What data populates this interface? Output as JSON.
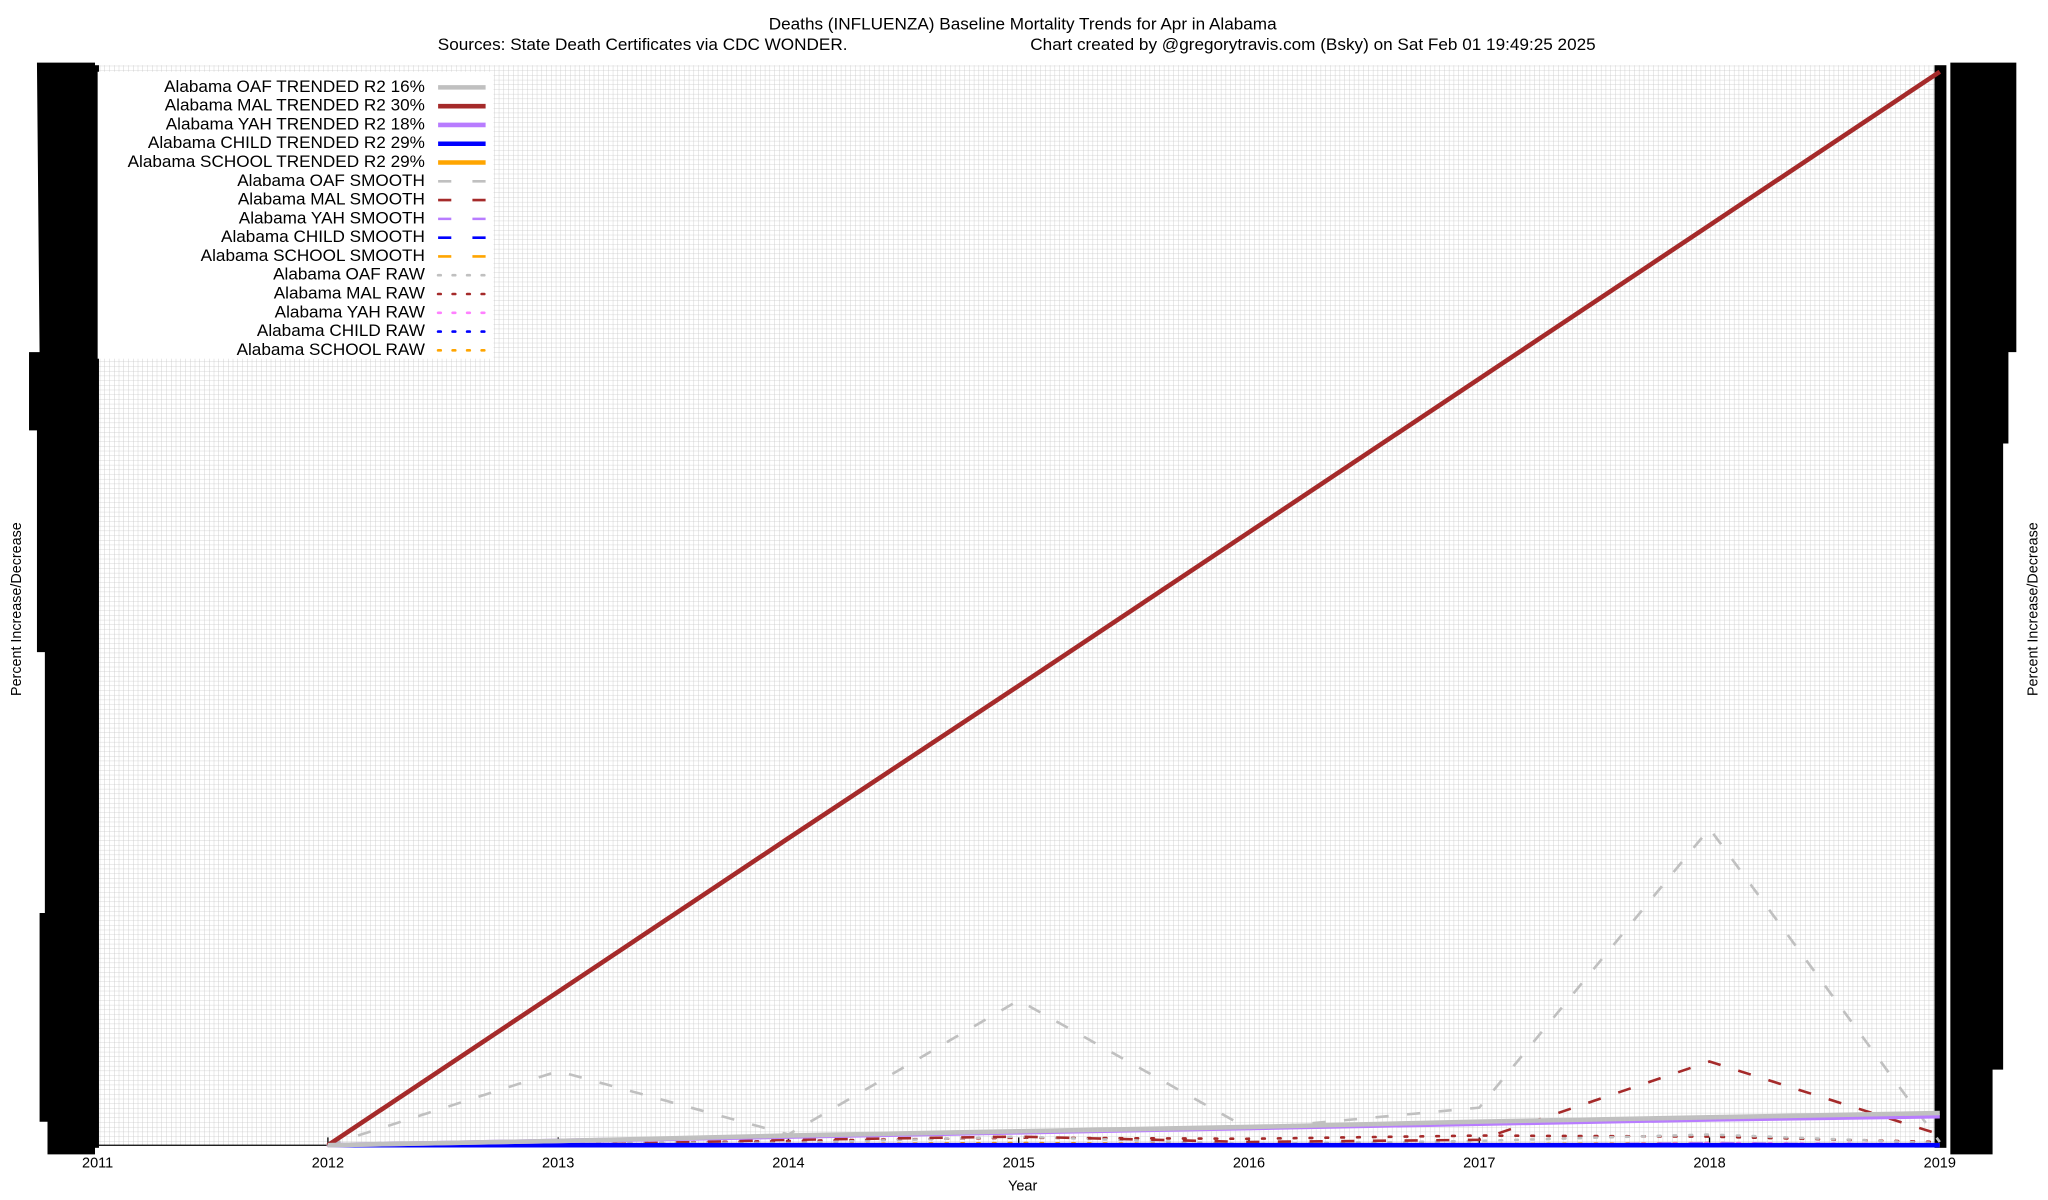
{
  "chart_data": {
    "type": "line",
    "title": "Deaths (INFLUENZA)  Baseline Mortality Trends for Apr in Alabama",
    "subtitle": "Sources: State Death Certificates via CDC WONDER.",
    "credit": "Chart created by @gregorytravis.com (Bsky) on Sat Feb 01 19:49:25 2025",
    "x_label": "Year",
    "y_label": "Percent Increase/Decrease",
    "y2_label": "Percent Increase/Decrease",
    "x": [
      2012,
      2013,
      2014,
      2015,
      2016,
      2017,
      2018,
      2019
    ],
    "xlim": [
      2011,
      2019
    ],
    "xticks": [
      2011,
      2012,
      2013,
      2014,
      2015,
      2016,
      2017,
      2018,
      2019
    ],
    "ylim": [
      0,
      100
    ],
    "grid": true,
    "legend": "top-left",
    "series": [
      {
        "name": "Alabama OAF TRENDED R2  16%",
        "color": "#c0c0c0",
        "style": "solid",
        "values": [
          0,
          0.4,
          0.9,
          1.3,
          1.7,
          2.2,
          2.6,
          3.0
        ]
      },
      {
        "name": "Alabama MAL TRENDED R2  30%",
        "color": "#a52a2a",
        "style": "solid",
        "values": [
          0,
          14.3,
          28.6,
          42.8,
          57.1,
          71.4,
          85.7,
          100
        ]
      },
      {
        "name": "Alabama YAH TRENDED R2  18%",
        "color": "#b87cff",
        "style": "solid",
        "values": [
          0,
          0.4,
          0.8,
          1.2,
          1.6,
          2.0,
          2.4,
          2.7
        ]
      },
      {
        "name": "Alabama CHILD TRENDED R2  29%",
        "color": "#0000ff",
        "style": "solid",
        "values": [
          0,
          0,
          0,
          0,
          0,
          0,
          0,
          0
        ]
      },
      {
        "name": "Alabama SCHOOL TRENDED R2  29%",
        "color": "#ffa500",
        "style": "solid",
        "values": [
          0,
          0,
          0,
          0,
          0,
          0,
          0,
          0
        ]
      },
      {
        "name": "Alabama OAF SMOOTH",
        "color": "#c0c0c0",
        "style": "dashed",
        "values": [
          0,
          6.9,
          1.0,
          13.5,
          1.5,
          3.5,
          29.5,
          0.3
        ]
      },
      {
        "name": "Alabama MAL SMOOTH",
        "color": "#a52a2a",
        "style": "dashed",
        "values": [
          0,
          0,
          0.5,
          0.8,
          0.3,
          0.5,
          7.8,
          1.0
        ]
      },
      {
        "name": "Alabama YAH SMOOTH",
        "color": "#b87cff",
        "style": "dashed",
        "values": [
          0,
          0,
          0,
          0.1,
          0,
          0,
          0.2,
          0
        ]
      },
      {
        "name": "Alabama CHILD SMOOTH",
        "color": "#0000ff",
        "style": "dashed",
        "values": [
          0,
          0,
          0,
          0,
          0,
          0,
          0,
          0
        ]
      },
      {
        "name": "Alabama SCHOOL SMOOTH",
        "color": "#ffa500",
        "style": "dashed",
        "values": [
          0,
          0,
          0,
          0,
          0,
          0,
          0,
          0
        ]
      },
      {
        "name": "Alabama OAF RAW",
        "color": "#c0c0c0",
        "style": "dotted",
        "values": [
          0,
          0.3,
          0.2,
          0.8,
          0.1,
          0.4,
          1.0,
          0.2
        ]
      },
      {
        "name": "Alabama MAL RAW",
        "color": "#a52a2a",
        "style": "dotted",
        "values": [
          0,
          0.1,
          0.4,
          0.7,
          0.6,
          0.9,
          0.8,
          0.3
        ]
      },
      {
        "name": "Alabama YAH RAW",
        "color": "#ff80ff",
        "style": "dotted",
        "values": [
          0,
          0,
          0.1,
          0,
          0.1,
          0,
          0.2,
          0.1
        ]
      },
      {
        "name": "Alabama CHILD RAW",
        "color": "#0000ff",
        "style": "dotted",
        "values": [
          0,
          0,
          0,
          0,
          0,
          0,
          0,
          0
        ]
      },
      {
        "name": "Alabama SCHOOL RAW",
        "color": "#ffa500",
        "style": "dotted",
        "values": [
          0,
          0,
          0.1,
          0.2,
          0.1,
          0.1,
          0.2,
          0
        ]
      }
    ]
  }
}
